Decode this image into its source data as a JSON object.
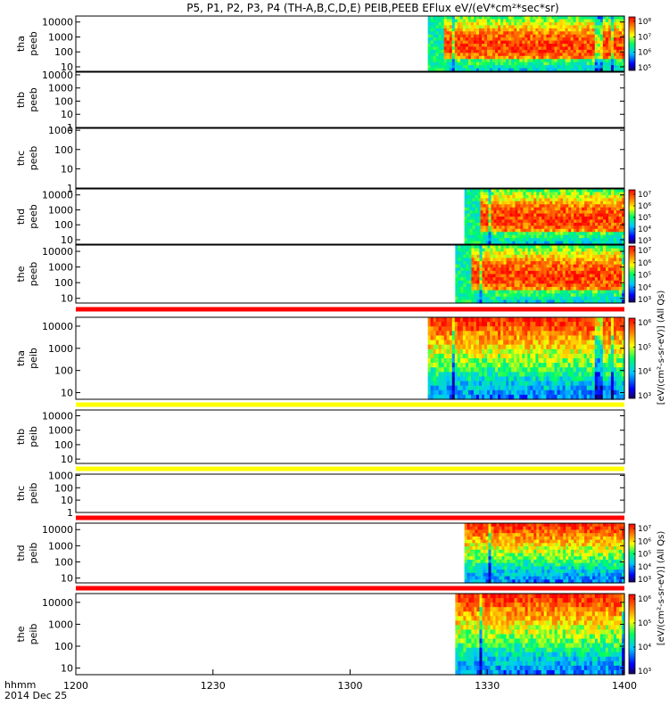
{
  "chart_data": {
    "type": "heatmap",
    "title": "P5, P1, P2, P3, P4 (TH-A,B,C,D,E) PEIB,PEEB EFlux eV/(eV*cm²*sec*sr)",
    "x_axis": {
      "label_line1": "hhmm",
      "label_line2": "2014 Dec 25",
      "ticks": [
        "1200",
        "1230",
        "1300",
        "1330",
        "1400"
      ],
      "range_min": [
        0,
        120
      ]
    },
    "colorbar_units": {
      "upper": "[eV/(cm²-s-sr-eV)] (All Qs)",
      "lower": "[eV/(cm²-s-sr-eV)] (All Qs)"
    },
    "panels": [
      {
        "probe": "tha",
        "type": "peeb",
        "label1": "tha",
        "label2": "peeb",
        "ticks": [
          "10000",
          "1000",
          "100",
          "10"
        ],
        "log_range": [
          0.7,
          4.4
        ],
        "data_start_min": 77,
        "data_end_min": 120,
        "colorbar_ticks": [
          "10⁸",
          "10⁷",
          "10⁶",
          "10⁵"
        ]
      },
      {
        "probe": "thb",
        "type": "peeb",
        "label1": "thb",
        "label2": "peeb",
        "ticks": [
          "10000",
          "1000",
          "100",
          "10",
          "1"
        ],
        "log_range": [
          0,
          4.2
        ],
        "data_start_min": null,
        "data_end_min": null,
        "colorbar_ticks": []
      },
      {
        "probe": "thc",
        "type": "peeb",
        "label1": "thc",
        "label2": "peeb",
        "ticks": [
          "1000",
          "100",
          "10",
          "1"
        ],
        "log_range": [
          0,
          3.1
        ],
        "data_start_min": null,
        "data_end_min": null,
        "colorbar_ticks": []
      },
      {
        "probe": "thd",
        "type": "peeb",
        "label1": "thd",
        "label2": "peeb",
        "ticks": [
          "10000",
          "1000",
          "100",
          "10"
        ],
        "log_range": [
          0.7,
          4.4
        ],
        "data_start_min": 85,
        "data_end_min": 120,
        "colorbar_ticks": [
          "10⁷",
          "10⁶",
          "10⁵",
          "10⁴",
          "10³"
        ]
      },
      {
        "probe": "the",
        "type": "peeb",
        "label1": "the",
        "label2": "peeb",
        "ticks": [
          "10000",
          "1000",
          "100",
          "10"
        ],
        "log_range": [
          0.7,
          4.4
        ],
        "data_start_min": 83,
        "data_end_min": 120,
        "colorbar_ticks": [
          "10⁷",
          "10⁶",
          "10⁵",
          "10⁴",
          "10³"
        ]
      },
      {
        "probe": "tha",
        "type": "peib",
        "label1": "tha",
        "label2": "peib",
        "ticks": [
          "10000",
          "1000",
          "100",
          "10"
        ],
        "log_range": [
          0.7,
          4.4
        ],
        "data_start_min": 77,
        "data_end_min": 120,
        "colorbar_ticks": [
          "10⁶",
          "10⁵",
          "10⁴",
          "10³"
        ]
      },
      {
        "probe": "thb",
        "type": "peib",
        "label1": "thb",
        "label2": "peib",
        "ticks": [
          "10000",
          "1000",
          "100",
          "10"
        ],
        "log_range": [
          0.7,
          4.4
        ],
        "data_start_min": null,
        "data_end_min": null,
        "colorbar_ticks": []
      },
      {
        "probe": "thc",
        "type": "peib",
        "label1": "thc",
        "label2": "peib",
        "ticks": [
          "1000",
          "100",
          "10",
          "1"
        ],
        "log_range": [
          0,
          3.1
        ],
        "data_start_min": null,
        "data_end_min": null,
        "colorbar_ticks": []
      },
      {
        "probe": "thd",
        "type": "peib",
        "label1": "thd",
        "label2": "peib",
        "ticks": [
          "10000",
          "1000",
          "100",
          "10"
        ],
        "log_range": [
          0.7,
          4.4
        ],
        "data_start_min": 85,
        "data_end_min": 120,
        "colorbar_ticks": [
          "10⁷",
          "10⁶",
          "10⁵",
          "10⁴",
          "10³"
        ]
      },
      {
        "probe": "the",
        "type": "peib",
        "label1": "the",
        "label2": "peib",
        "ticks": [
          "10000",
          "1000",
          "100",
          "10"
        ],
        "log_range": [
          0.7,
          4.4
        ],
        "data_start_min": 83,
        "data_end_min": 120,
        "colorbar_ticks": [
          "10⁶",
          "10⁵",
          "10⁴",
          "10³"
        ]
      }
    ],
    "separator_bars": [
      {
        "after_panel": 4,
        "color": "#ff0000"
      },
      {
        "after_panel": 5,
        "color": "#ffff00"
      },
      {
        "after_panel": 6,
        "color": "#ffff00"
      },
      {
        "after_panel": 7,
        "color": "#ff0000"
      },
      {
        "after_panel": 8,
        "color": "#ff0000"
      }
    ]
  }
}
